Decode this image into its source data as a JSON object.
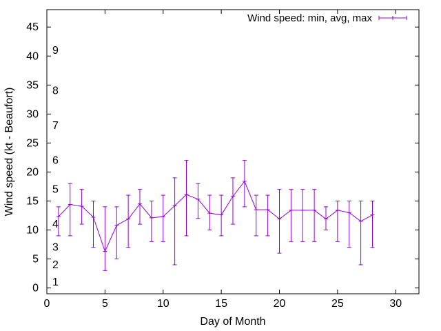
{
  "chart_data": {
    "type": "line",
    "title": "",
    "xlabel": "Day of Month",
    "ylabel": "Wind speed (kt - Beaufort)",
    "xlim": [
      0,
      32
    ],
    "ylim": [
      -1,
      48
    ],
    "xticks": [
      0,
      5,
      10,
      15,
      20,
      25,
      30
    ],
    "yticks": [
      0,
      5,
      10,
      15,
      20,
      25,
      30,
      35,
      40,
      45
    ],
    "grid": false,
    "legend_position": "top-right",
    "beaufort_scale": {
      "labels": [
        "1",
        "2",
        "3",
        "4",
        "5",
        "6",
        "7",
        "8",
        "9"
      ],
      "knots": [
        1,
        4,
        7,
        11,
        17,
        22,
        28,
        34,
        41
      ]
    },
    "series": [
      {
        "name": "Wind speed: min, avg, max",
        "color": "#9400d3",
        "style": "errorlines",
        "x": [
          1,
          2,
          3,
          4,
          5,
          6,
          7,
          8,
          9,
          10,
          11,
          12,
          13,
          14,
          15,
          16,
          17,
          18,
          19,
          20,
          21,
          22,
          23,
          24,
          25,
          26,
          27,
          28
        ],
        "avg": [
          12.3,
          14.4,
          14.1,
          12.2,
          6.3,
          10.8,
          11.9,
          14.5,
          12.1,
          12.3,
          14.2,
          16.1,
          15.3,
          12.9,
          12.6,
          15.8,
          18.4,
          13.5,
          13.5,
          11.9,
          13.4,
          13.4,
          13.4,
          11.9,
          13.4,
          13.0,
          11.5,
          12.6
        ],
        "min": [
          9,
          9,
          11,
          7,
          3,
          5,
          7,
          11,
          8,
          8,
          4,
          9,
          12,
          10,
          9,
          11,
          14,
          9,
          9,
          6,
          8,
          8,
          8,
          10,
          8,
          7,
          4,
          7
        ],
        "max": [
          14,
          18,
          17,
          15,
          14,
          14,
          16,
          17,
          15,
          16,
          19,
          22,
          18,
          16,
          16,
          19,
          22,
          16,
          16,
          17,
          17,
          17,
          17,
          14,
          15,
          15,
          15,
          15
        ]
      }
    ]
  }
}
